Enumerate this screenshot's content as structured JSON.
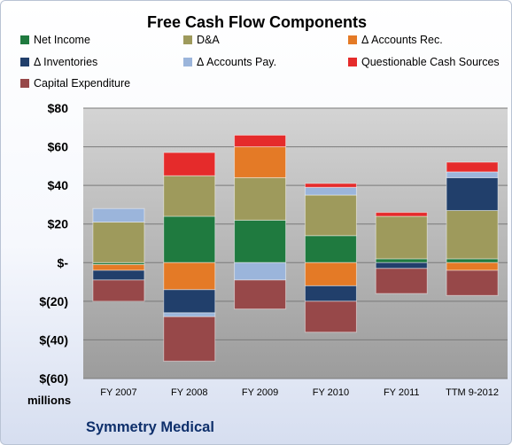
{
  "chart_data": {
    "type": "bar",
    "stacked": true,
    "title": "Free Cash Flow Components",
    "categories": [
      "FY 2007",
      "FY 2008",
      "FY 2009",
      "FY 2010",
      "FY 2011",
      "TTM 9-2012"
    ],
    "y_tick_labels": [
      "$80",
      "$60",
      "$40",
      "$20",
      "$-",
      "$(20)",
      "$(40)",
      "$(60)"
    ],
    "y_ticks": [
      80,
      60,
      40,
      20,
      0,
      -20,
      -40,
      -60
    ],
    "ylim": [
      -60,
      80
    ],
    "unit_label": "millions",
    "grid": true,
    "legend_position": "top",
    "series": [
      {
        "name": "Net Income",
        "color": "#1f7a3f",
        "values": [
          -1,
          24,
          22,
          14,
          2,
          2
        ]
      },
      {
        "name": "D&A",
        "color": "#9e9a5c",
        "values": [
          21,
          21,
          22,
          21,
          22,
          25
        ]
      },
      {
        "name": "Δ Accounts Rec.",
        "color": "#e47a26",
        "values": [
          -3,
          -14,
          16,
          -12,
          0,
          -4
        ]
      },
      {
        "name": "Δ Inventories",
        "color": "#213f6b",
        "values": [
          -5,
          -12,
          0,
          -8,
          -3,
          17
        ]
      },
      {
        "name": "Δ Accounts Pay.",
        "color": "#9bb5db",
        "values": [
          7,
          -2,
          -9,
          4,
          0,
          3
        ]
      },
      {
        "name": "Questionable Cash Sources",
        "color": "#e52b2b",
        "values": [
          0,
          12,
          6,
          2,
          2,
          5
        ]
      },
      {
        "name": "Capital Expenditure",
        "color": "#974849",
        "values": [
          -11,
          -23,
          -15,
          -16,
          -13,
          -13
        ]
      }
    ]
  },
  "company": "Symmetry Medical"
}
